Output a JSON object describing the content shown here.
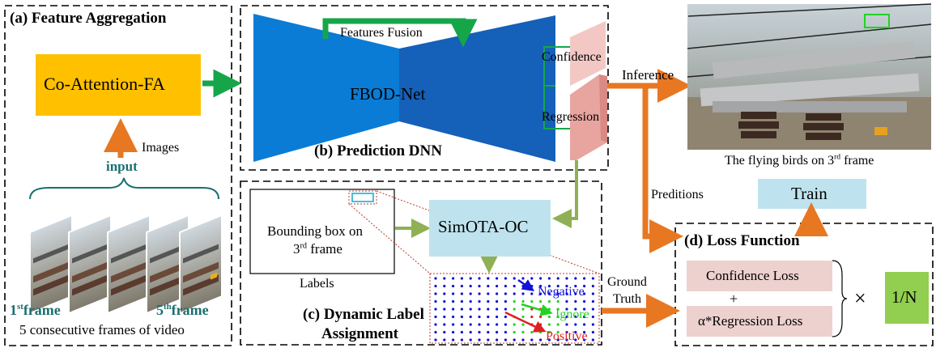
{
  "sections": {
    "feature_aggregation": "(a) Feature Aggregation",
    "prediction_dnn": "(b) Prediction DNN",
    "label_assignment_line1": "(c) Dynamic Label",
    "label_assignment_line2": "Assignment",
    "loss_function": "(d) Loss Function"
  },
  "feature_aggregation": {
    "module": "Co-Attention-FA",
    "images_label": "Images",
    "input_label": "input",
    "first_frame_num": "1",
    "first_frame_sup": "st",
    "first_frame_word": "frame",
    "fifth_frame_num": "5",
    "fifth_frame_sup": "th",
    "fifth_frame_word": "frame",
    "caption": "5 consecutive frames of video"
  },
  "prediction": {
    "network": "FBOD-Net",
    "fusion": "Features Fusion",
    "confidence": "Confidence",
    "regression": "Regression"
  },
  "inference": {
    "inference_label": "Inference",
    "caption_prefix": "The flying birds on 3",
    "caption_sup": "rd",
    "caption_suffix": " frame",
    "preditions_label": "Preditions"
  },
  "labels": {
    "bbox_line1": "Bounding box on",
    "bbox_line2_num": "3",
    "bbox_line2_sup": "rd",
    "bbox_line2_word": " frame",
    "labels_caption": "Labels",
    "simota": "SimOTA-OC",
    "negative": "Negative",
    "ignore": "Ignore",
    "positive": "Positive",
    "ground": "Ground",
    "truth": "Truth"
  },
  "loss": {
    "confidence_loss": "Confidence Loss",
    "plus": "+",
    "regression_loss": "α*Regression Loss",
    "times": "×",
    "normalizer": "1/N",
    "train": "Train"
  },
  "colors": {
    "gold": "#FFC000",
    "blue_light": "#0A7CD6",
    "blue_dark": "#1560B8",
    "green_arrow": "#16A64A",
    "orange_arrow": "#E87722",
    "olive_arrow": "#8FB054",
    "pink_box": "#EDD1CF",
    "pink_head": "#E8A49E",
    "light_blue_box": "#BEE3EE",
    "green_box": "#92CE4F",
    "teal_text": "#1B6F6F",
    "negative": "#1212D8",
    "ignore": "#23D223",
    "positive": "#E02020"
  }
}
